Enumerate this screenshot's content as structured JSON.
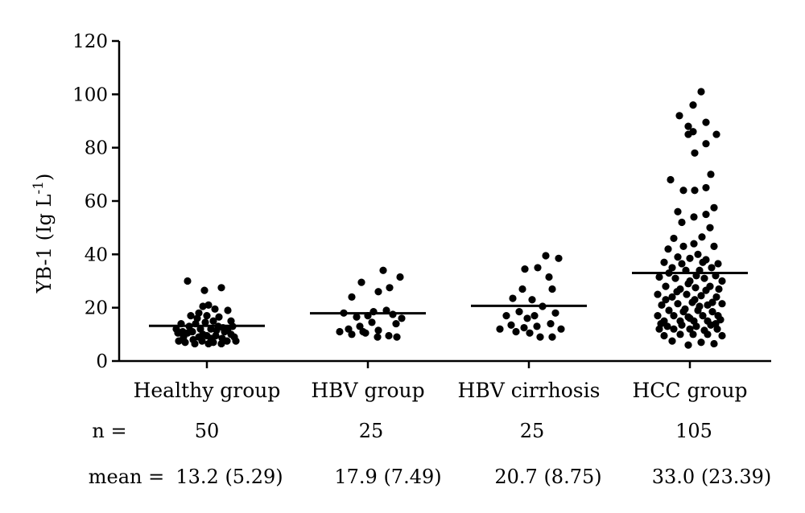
{
  "chart_data": {
    "type": "scatter",
    "ylabel_main": "YB-1 (Ig L",
    "ylabel_sup": "-1",
    "ylabel_close": ")",
    "ylim": [
      0,
      120
    ],
    "yticks": [
      "0",
      "20",
      "40",
      "60",
      "80",
      "100",
      "120"
    ],
    "categories": [
      "Healthy group",
      "HBV group",
      "HBV cirrhosis",
      "HCC group"
    ],
    "means": [
      13.2,
      17.9,
      20.7,
      33.0
    ],
    "series": [
      {
        "category": "Healthy group",
        "points": [
          [
            -0.24,
            30
          ],
          [
            -0.03,
            26.5
          ],
          [
            0.18,
            27.5
          ],
          [
            -0.3,
            11
          ],
          [
            -0.22,
            13
          ],
          [
            -0.12,
            16
          ],
          [
            0.0,
            17
          ],
          [
            0.08,
            15
          ],
          [
            0.26,
            19
          ],
          [
            -0.05,
            20.5
          ],
          [
            0.15,
            16.5
          ],
          [
            0.32,
            13
          ],
          [
            -0.38,
            12
          ],
          [
            -0.18,
            11
          ],
          [
            0.05,
            12
          ],
          [
            0.22,
            11
          ],
          [
            -0.02,
            14.5
          ],
          [
            -0.29,
            9
          ],
          [
            -0.35,
            7.5
          ],
          [
            -0.27,
            7
          ],
          [
            -0.17,
            8
          ],
          [
            -0.1,
            9
          ],
          [
            0.0,
            9.5
          ],
          [
            0.05,
            8.5
          ],
          [
            0.11,
            9.5
          ],
          [
            0.19,
            8.5
          ],
          [
            0.25,
            7.5
          ],
          [
            0.3,
            10
          ],
          [
            0.36,
            7.5
          ],
          [
            -0.06,
            7.5
          ],
          [
            -0.14,
            14
          ],
          [
            0.14,
            13
          ],
          [
            -0.08,
            12
          ],
          [
            0.12,
            11.5
          ],
          [
            -0.32,
            14
          ],
          [
            0.3,
            15
          ],
          [
            -0.2,
            17
          ],
          [
            0.1,
            19.5
          ],
          [
            0.02,
            21
          ],
          [
            -0.1,
            18
          ],
          [
            0.2,
            12.5
          ],
          [
            -0.24,
            10.5
          ],
          [
            0.34,
            9
          ],
          [
            -0.15,
            6.5
          ],
          [
            0.02,
            6.5
          ],
          [
            0.18,
            6.5
          ],
          [
            0.26,
            12
          ],
          [
            -0.05,
            10
          ],
          [
            -0.36,
            10.5
          ],
          [
            0.08,
            7
          ]
        ]
      },
      {
        "category": "HBV group",
        "points": [
          [
            -0.08,
            29.5
          ],
          [
            0.19,
            34
          ],
          [
            0.4,
            31.5
          ],
          [
            0.13,
            26
          ],
          [
            -0.2,
            24
          ],
          [
            0.27,
            27.5
          ],
          [
            -0.3,
            18
          ],
          [
            -0.14,
            16.5
          ],
          [
            0.0,
            17
          ],
          [
            0.07,
            18.5
          ],
          [
            0.23,
            19
          ],
          [
            0.31,
            17.5
          ],
          [
            -0.24,
            12
          ],
          [
            -0.1,
            13
          ],
          [
            0.13,
            11.5
          ],
          [
            0.35,
            14
          ],
          [
            -0.35,
            11
          ],
          [
            -0.2,
            10
          ],
          [
            -0.03,
            10.5
          ],
          [
            0.12,
            9
          ],
          [
            0.26,
            9.5
          ],
          [
            0.36,
            9
          ],
          [
            0.05,
            14.5
          ],
          [
            0.42,
            16
          ],
          [
            -0.06,
            11
          ]
        ]
      },
      {
        "category": "HBV cirrhosis",
        "points": [
          [
            0.21,
            39.5
          ],
          [
            0.37,
            38.5
          ],
          [
            0.11,
            35
          ],
          [
            -0.05,
            34.5
          ],
          [
            0.25,
            31.5
          ],
          [
            -0.08,
            27
          ],
          [
            0.29,
            27
          ],
          [
            -0.2,
            23.5
          ],
          [
            0.04,
            23
          ],
          [
            0.17,
            20.5
          ],
          [
            0.33,
            18
          ],
          [
            -0.28,
            17
          ],
          [
            -0.12,
            18.5
          ],
          [
            0.07,
            17
          ],
          [
            -0.22,
            13.5
          ],
          [
            -0.06,
            12.5
          ],
          [
            0.1,
            13
          ],
          [
            0.27,
            14
          ],
          [
            0.4,
            12
          ],
          [
            -0.36,
            12
          ],
          [
            -0.16,
            11
          ],
          [
            0.01,
            10.5
          ],
          [
            0.14,
            9
          ],
          [
            0.29,
            9
          ],
          [
            -0.02,
            16
          ]
        ]
      },
      {
        "category": "HCC group",
        "points": [
          [
            0.14,
            101
          ],
          [
            0.04,
            96
          ],
          [
            -0.13,
            92
          ],
          [
            0.2,
            89.5
          ],
          [
            -0.02,
            88
          ],
          [
            0.04,
            86
          ],
          [
            -0.02,
            85
          ],
          [
            0.33,
            85
          ],
          [
            0.2,
            81.5
          ],
          [
            0.06,
            78
          ],
          [
            0.26,
            70
          ],
          [
            -0.24,
            68
          ],
          [
            0.2,
            65
          ],
          [
            0.06,
            64
          ],
          [
            -0.08,
            64
          ],
          [
            -0.15,
            56
          ],
          [
            0.3,
            57.5
          ],
          [
            0.2,
            55
          ],
          [
            0.05,
            54
          ],
          [
            -0.1,
            52
          ],
          [
            0.25,
            50
          ],
          [
            0.15,
            46.5
          ],
          [
            -0.2,
            46
          ],
          [
            -0.08,
            43
          ],
          [
            0.05,
            44
          ],
          [
            0.3,
            43
          ],
          [
            -0.27,
            42
          ],
          [
            0.1,
            40
          ],
          [
            -0.15,
            39
          ],
          [
            0.0,
            38.5
          ],
          [
            0.2,
            38
          ],
          [
            -0.32,
            37
          ],
          [
            0.35,
            36.5
          ],
          [
            -0.22,
            35
          ],
          [
            -0.05,
            34
          ],
          [
            0.12,
            34
          ],
          [
            0.27,
            35
          ],
          [
            -0.38,
            31.5
          ],
          [
            -0.18,
            31
          ],
          [
            0.0,
            30
          ],
          [
            0.18,
            31
          ],
          [
            0.4,
            30
          ],
          [
            -0.3,
            28
          ],
          [
            -0.12,
            27
          ],
          [
            0.07,
            27.5
          ],
          [
            0.25,
            28
          ],
          [
            -0.4,
            25
          ],
          [
            -0.22,
            24
          ],
          [
            -0.04,
            25
          ],
          [
            0.14,
            24.5
          ],
          [
            0.33,
            24
          ],
          [
            -0.35,
            21
          ],
          [
            -0.15,
            21.5
          ],
          [
            0.03,
            22
          ],
          [
            0.22,
            21
          ],
          [
            0.4,
            21.5
          ],
          [
            -0.26,
            19
          ],
          [
            -0.08,
            18.5
          ],
          [
            0.1,
            19
          ],
          [
            0.28,
            18.5
          ],
          [
            -0.4,
            17
          ],
          [
            -0.2,
            17
          ],
          [
            -0.02,
            16.5
          ],
          [
            0.16,
            17
          ],
          [
            0.35,
            17
          ],
          [
            -0.32,
            15
          ],
          [
            -0.12,
            15
          ],
          [
            0.05,
            15
          ],
          [
            0.22,
            15
          ],
          [
            0.38,
            15.5
          ],
          [
            -0.28,
            13
          ],
          [
            -0.1,
            13.5
          ],
          [
            0.08,
            13
          ],
          [
            0.26,
            13.5
          ],
          [
            -0.38,
            12
          ],
          [
            -0.2,
            12
          ],
          [
            0.0,
            12
          ],
          [
            0.18,
            11.5
          ],
          [
            0.34,
            12
          ],
          [
            -0.32,
            9.5
          ],
          [
            -0.12,
            10
          ],
          [
            0.04,
            10
          ],
          [
            0.22,
            10
          ],
          [
            0.4,
            9.5
          ],
          [
            -0.22,
            7.5
          ],
          [
            -0.02,
            6
          ],
          [
            0.14,
            7
          ],
          [
            0.3,
            6.5
          ],
          [
            -0.06,
            19.5
          ],
          [
            0.12,
            20.5
          ],
          [
            -0.36,
            14
          ],
          [
            0.32,
            14
          ],
          [
            -0.16,
            26
          ],
          [
            0.2,
            26.5
          ],
          [
            -0.02,
            29
          ],
          [
            0.36,
            27
          ],
          [
            -0.3,
            23
          ],
          [
            0.06,
            23
          ],
          [
            0.28,
            22
          ],
          [
            -0.26,
            33
          ],
          [
            0.08,
            32
          ],
          [
            0.32,
            32
          ],
          [
            -0.1,
            36.5
          ],
          [
            0.16,
            37
          ],
          [
            0.0,
            16
          ]
        ]
      }
    ]
  },
  "stats": {
    "n_label": "n =",
    "n_values": [
      "50",
      "25",
      "25",
      "105"
    ],
    "mean_label": "mean =",
    "mean_values": [
      "13.2 (5.29)",
      "17.9 (7.49)",
      "20.7 (8.75)",
      "33.0 (23.39)"
    ]
  }
}
